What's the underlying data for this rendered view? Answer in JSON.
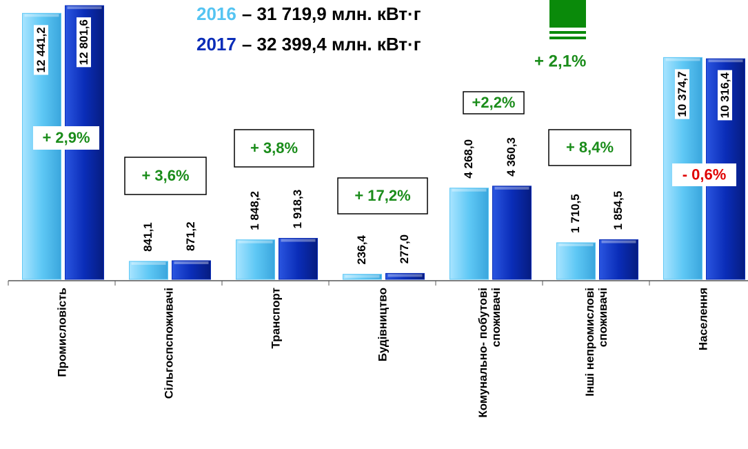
{
  "chart_data": {
    "type": "bar",
    "categories": [
      "Промисловість",
      "Сільгоспспоживачі",
      "Транспорт",
      "Будівництво",
      "Комунально- побутові споживачі",
      "Інші непромислові споживачі",
      "Населення"
    ],
    "series": [
      {
        "name": "2016",
        "color": "#5fc8f5",
        "total": "– 31 719,9 млн. кВт·г",
        "values": [
          12441.2,
          841.1,
          1848.2,
          236.4,
          4268.0,
          1710.5,
          10374.7
        ],
        "value_labels": [
          "12 441,2",
          "841,1",
          "1 848,2",
          "236,4",
          "4 268,0",
          "1 710,5",
          "10 374,7"
        ]
      },
      {
        "name": "2017",
        "color": "#0a2db8",
        "total": "– 32 399,4 млн. кВт·г",
        "values": [
          12801.6,
          871.2,
          1918.3,
          277.0,
          4360.3,
          1854.5,
          10316.4
        ],
        "value_labels": [
          "12 801,6",
          "871,2",
          "1 918,3",
          "277,0",
          "4 360,3",
          "1 854,5",
          "10 316,4"
        ]
      }
    ],
    "total_change": "+ 2,1%",
    "annotations": [
      {
        "text": "+ 2,9%",
        "color": "#1a8c1a"
      },
      {
        "text": "+ 3,6%",
        "color": "#1a8c1a"
      },
      {
        "text": "+ 3,8%",
        "color": "#1a8c1a"
      },
      {
        "text": "+ 17,2%",
        "color": "#1a8c1a"
      },
      {
        "text": "+2,2%",
        "color": "#1a8c1a"
      },
      {
        "text": "+ 8,4%",
        "color": "#1a8c1a"
      },
      {
        "text": "- 0,6%",
        "color": "#e00000"
      }
    ],
    "ylim": [
      0,
      13000
    ]
  }
}
